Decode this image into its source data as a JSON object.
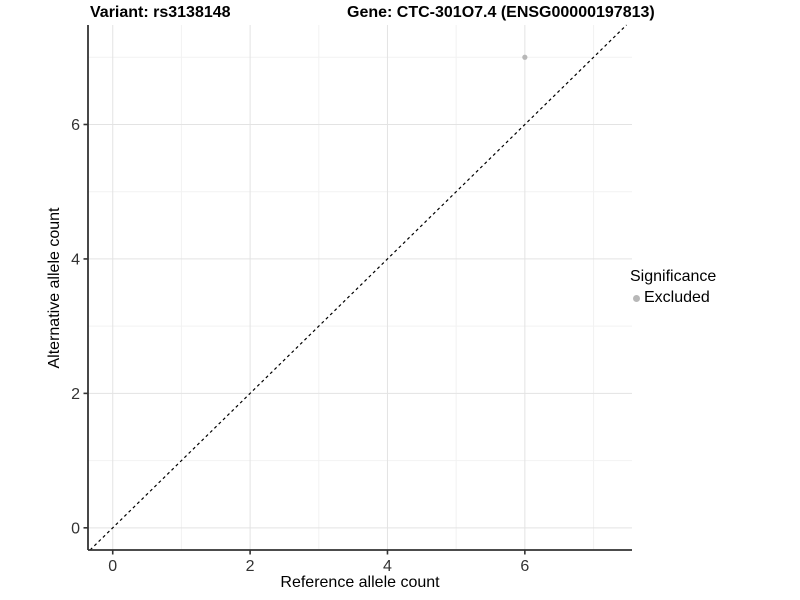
{
  "chart_data": {
    "type": "scatter",
    "title_left": "Variant: rs3138148",
    "title_right": "Gene: CTC-301O7.4 (ENSG00000197813)",
    "xlabel": "Reference allele count",
    "ylabel": "Alternative allele count",
    "xlim": [
      -0.36,
      7.56
    ],
    "ylim": [
      -0.33,
      7.48
    ],
    "x_major_ticks": [
      0,
      2,
      4,
      6
    ],
    "y_major_ticks": [
      0,
      2,
      4,
      6
    ],
    "x_minor_gridlines": [
      1,
      3,
      5,
      7
    ],
    "y_minor_gridlines": [
      1,
      3,
      5,
      7
    ],
    "grid": true,
    "points": [
      {
        "x": 6,
        "y": 7,
        "series": "Excluded"
      }
    ],
    "reference_line": {
      "slope": 1,
      "intercept": 0,
      "style": "dashed",
      "color": "#000000"
    },
    "legend": {
      "title": "Significance",
      "position": "right",
      "items": [
        {
          "label": "Excluded",
          "color": "#b8b8b8"
        }
      ]
    },
    "colors": {
      "background": "#ffffff",
      "grid_major": "#e3e3e3",
      "grid_minor": "#f2f2f2",
      "axis_line": "#333333",
      "tick_mark": "#333333",
      "tick_label": "#333333",
      "title": "#000000",
      "point": "#b8b8b8"
    }
  }
}
